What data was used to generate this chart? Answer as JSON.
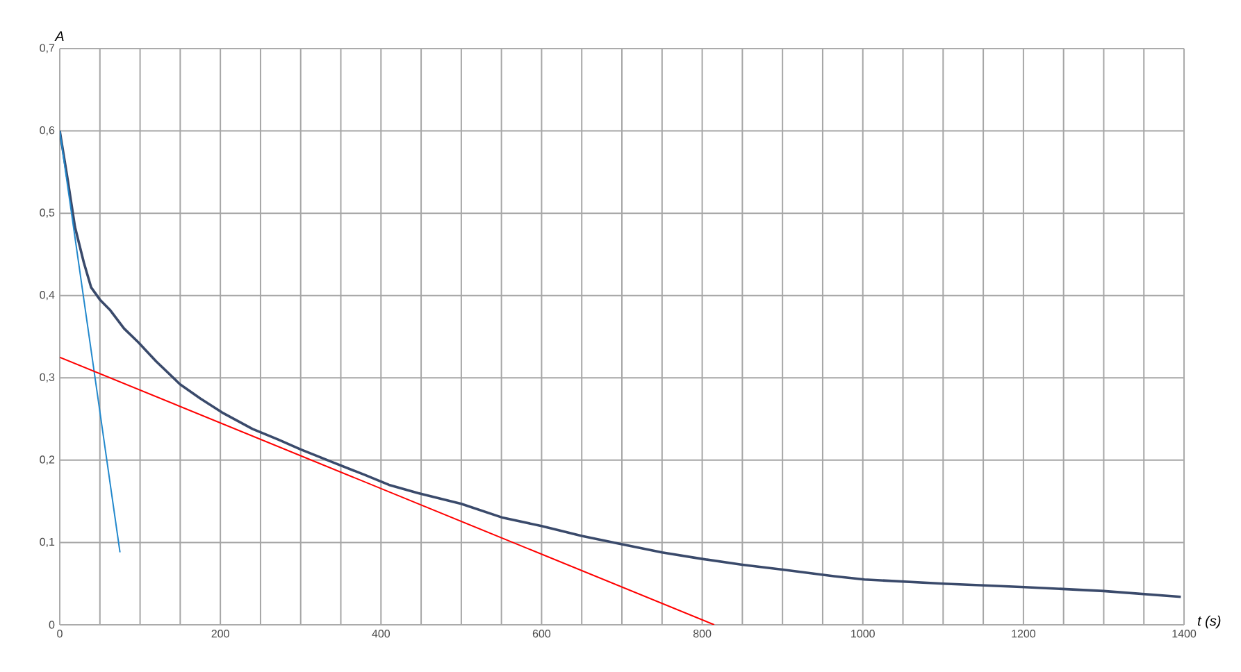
{
  "chart_data": {
    "type": "line",
    "xlabel": "t (s)",
    "ylabel": "A",
    "xlim": [
      0,
      1400
    ],
    "ylim": [
      0,
      0.7
    ],
    "xticks": [
      0,
      {
        "value": 50,
        "label": null
      },
      {
        "value": 100,
        "label": null
      },
      {
        "value": 150,
        "label": null
      },
      200,
      {
        "value": 250,
        "label": null
      },
      {
        "value": 300,
        "label": null
      },
      {
        "value": 350,
        "label": null
      },
      400,
      {
        "value": 450,
        "label": null
      },
      {
        "value": 500,
        "label": null
      },
      {
        "value": 550,
        "label": null
      },
      600,
      {
        "value": 650,
        "label": null
      },
      {
        "value": 700,
        "label": null
      },
      {
        "value": 750,
        "label": null
      },
      800,
      {
        "value": 850,
        "label": null
      },
      {
        "value": 900,
        "label": null
      },
      {
        "value": 950,
        "label": null
      },
      1000,
      {
        "value": 1050,
        "label": null
      },
      {
        "value": 1100,
        "label": null
      },
      {
        "value": 1150,
        "label": null
      },
      1200,
      {
        "value": 1250,
        "label": null
      },
      {
        "value": 1300,
        "label": null
      },
      {
        "value": 1350,
        "label": null
      },
      1400
    ],
    "yticks": [
      0,
      {
        "value": 0.1,
        "label": "0,1"
      },
      {
        "value": 0.2,
        "label": "0,2"
      },
      {
        "value": 0.3,
        "label": "0,3"
      },
      {
        "value": 0.4,
        "label": "0,4"
      },
      {
        "value": 0.5,
        "label": "0,5"
      },
      {
        "value": 0.6,
        "label": "0,6"
      },
      {
        "value": 0.7,
        "label": "0,7"
      }
    ],
    "grid": true,
    "marker": "none",
    "line_style": "solid",
    "series": [
      {
        "color": "#3a4a6b",
        "x": [
          0,
          10,
          19,
          30,
          39,
          50,
          63,
          80,
          98,
          120,
          150,
          175,
          202,
          240,
          272,
          300,
          341,
          380,
          410,
          446,
          500,
          552,
          600,
          650,
          699,
          750,
          800,
          850,
          900,
          964,
          1002,
          1100,
          1197,
          1300,
          1396
        ],
        "values": [
          0.6,
          0.54,
          0.483,
          0.44,
          0.41,
          0.395,
          0.382,
          0.36,
          0.343,
          0.32,
          0.292,
          0.275,
          0.258,
          0.238,
          0.225,
          0.213,
          0.197,
          0.182,
          0.17,
          0.16,
          0.147,
          0.13,
          0.12,
          0.108,
          0.098,
          0.088,
          0.08,
          0.073,
          0.067,
          0.059,
          0.055,
          0.05,
          0.046,
          0.041,
          0.034
        ]
      },
      {
        "color": "#2288cc",
        "x": [
          0,
          75
        ],
        "values": [
          0.6,
          0.088
        ]
      },
      {
        "color": "#ff0000",
        "x": [
          0,
          815
        ],
        "values": [
          0.325,
          0
        ]
      }
    ]
  }
}
